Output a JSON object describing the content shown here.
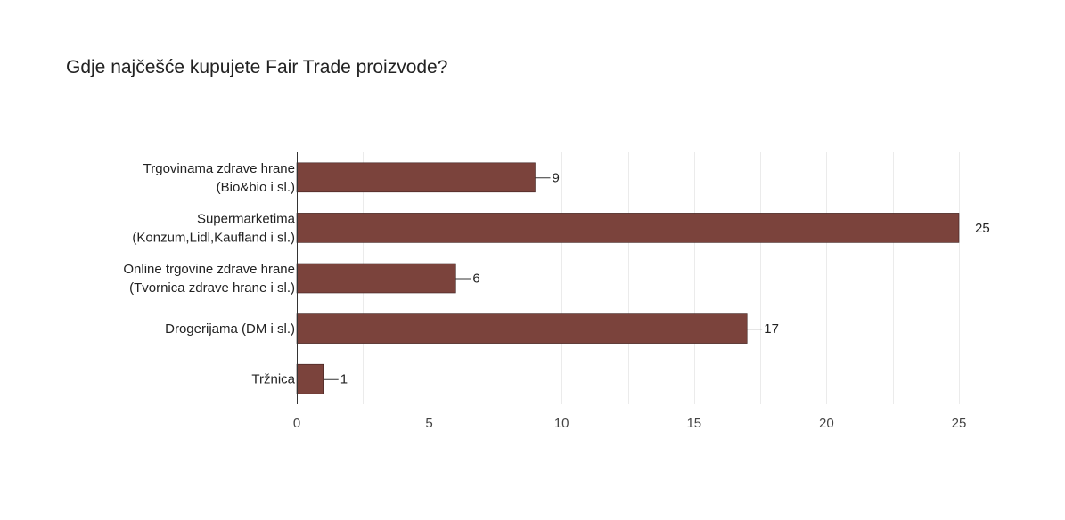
{
  "chart_data": {
    "type": "bar",
    "orientation": "horizontal",
    "title": "Gdje najčešće kupujete Fair Trade proizvode?",
    "categories": [
      [
        "Trgovinama zdrave hrane",
        "(Bio&bio i sl.)"
      ],
      [
        "Supermarketima",
        "(Konzum,Lidl,Kaufland i sl.)"
      ],
      [
        "Online trgovine zdrave hrane",
        "(Tvornica zdrave hrane i sl.)"
      ],
      [
        "Drogerijama (DM i sl.)"
      ],
      [
        "Tržnica"
      ]
    ],
    "values": [
      9,
      25,
      6,
      17,
      1
    ],
    "xlim": [
      0,
      25
    ],
    "xticks": [
      0,
      5,
      10,
      15,
      20,
      25
    ],
    "xlabel": "",
    "ylabel": "",
    "grid": true,
    "legend": "none",
    "bar_color": "#7b433c"
  }
}
